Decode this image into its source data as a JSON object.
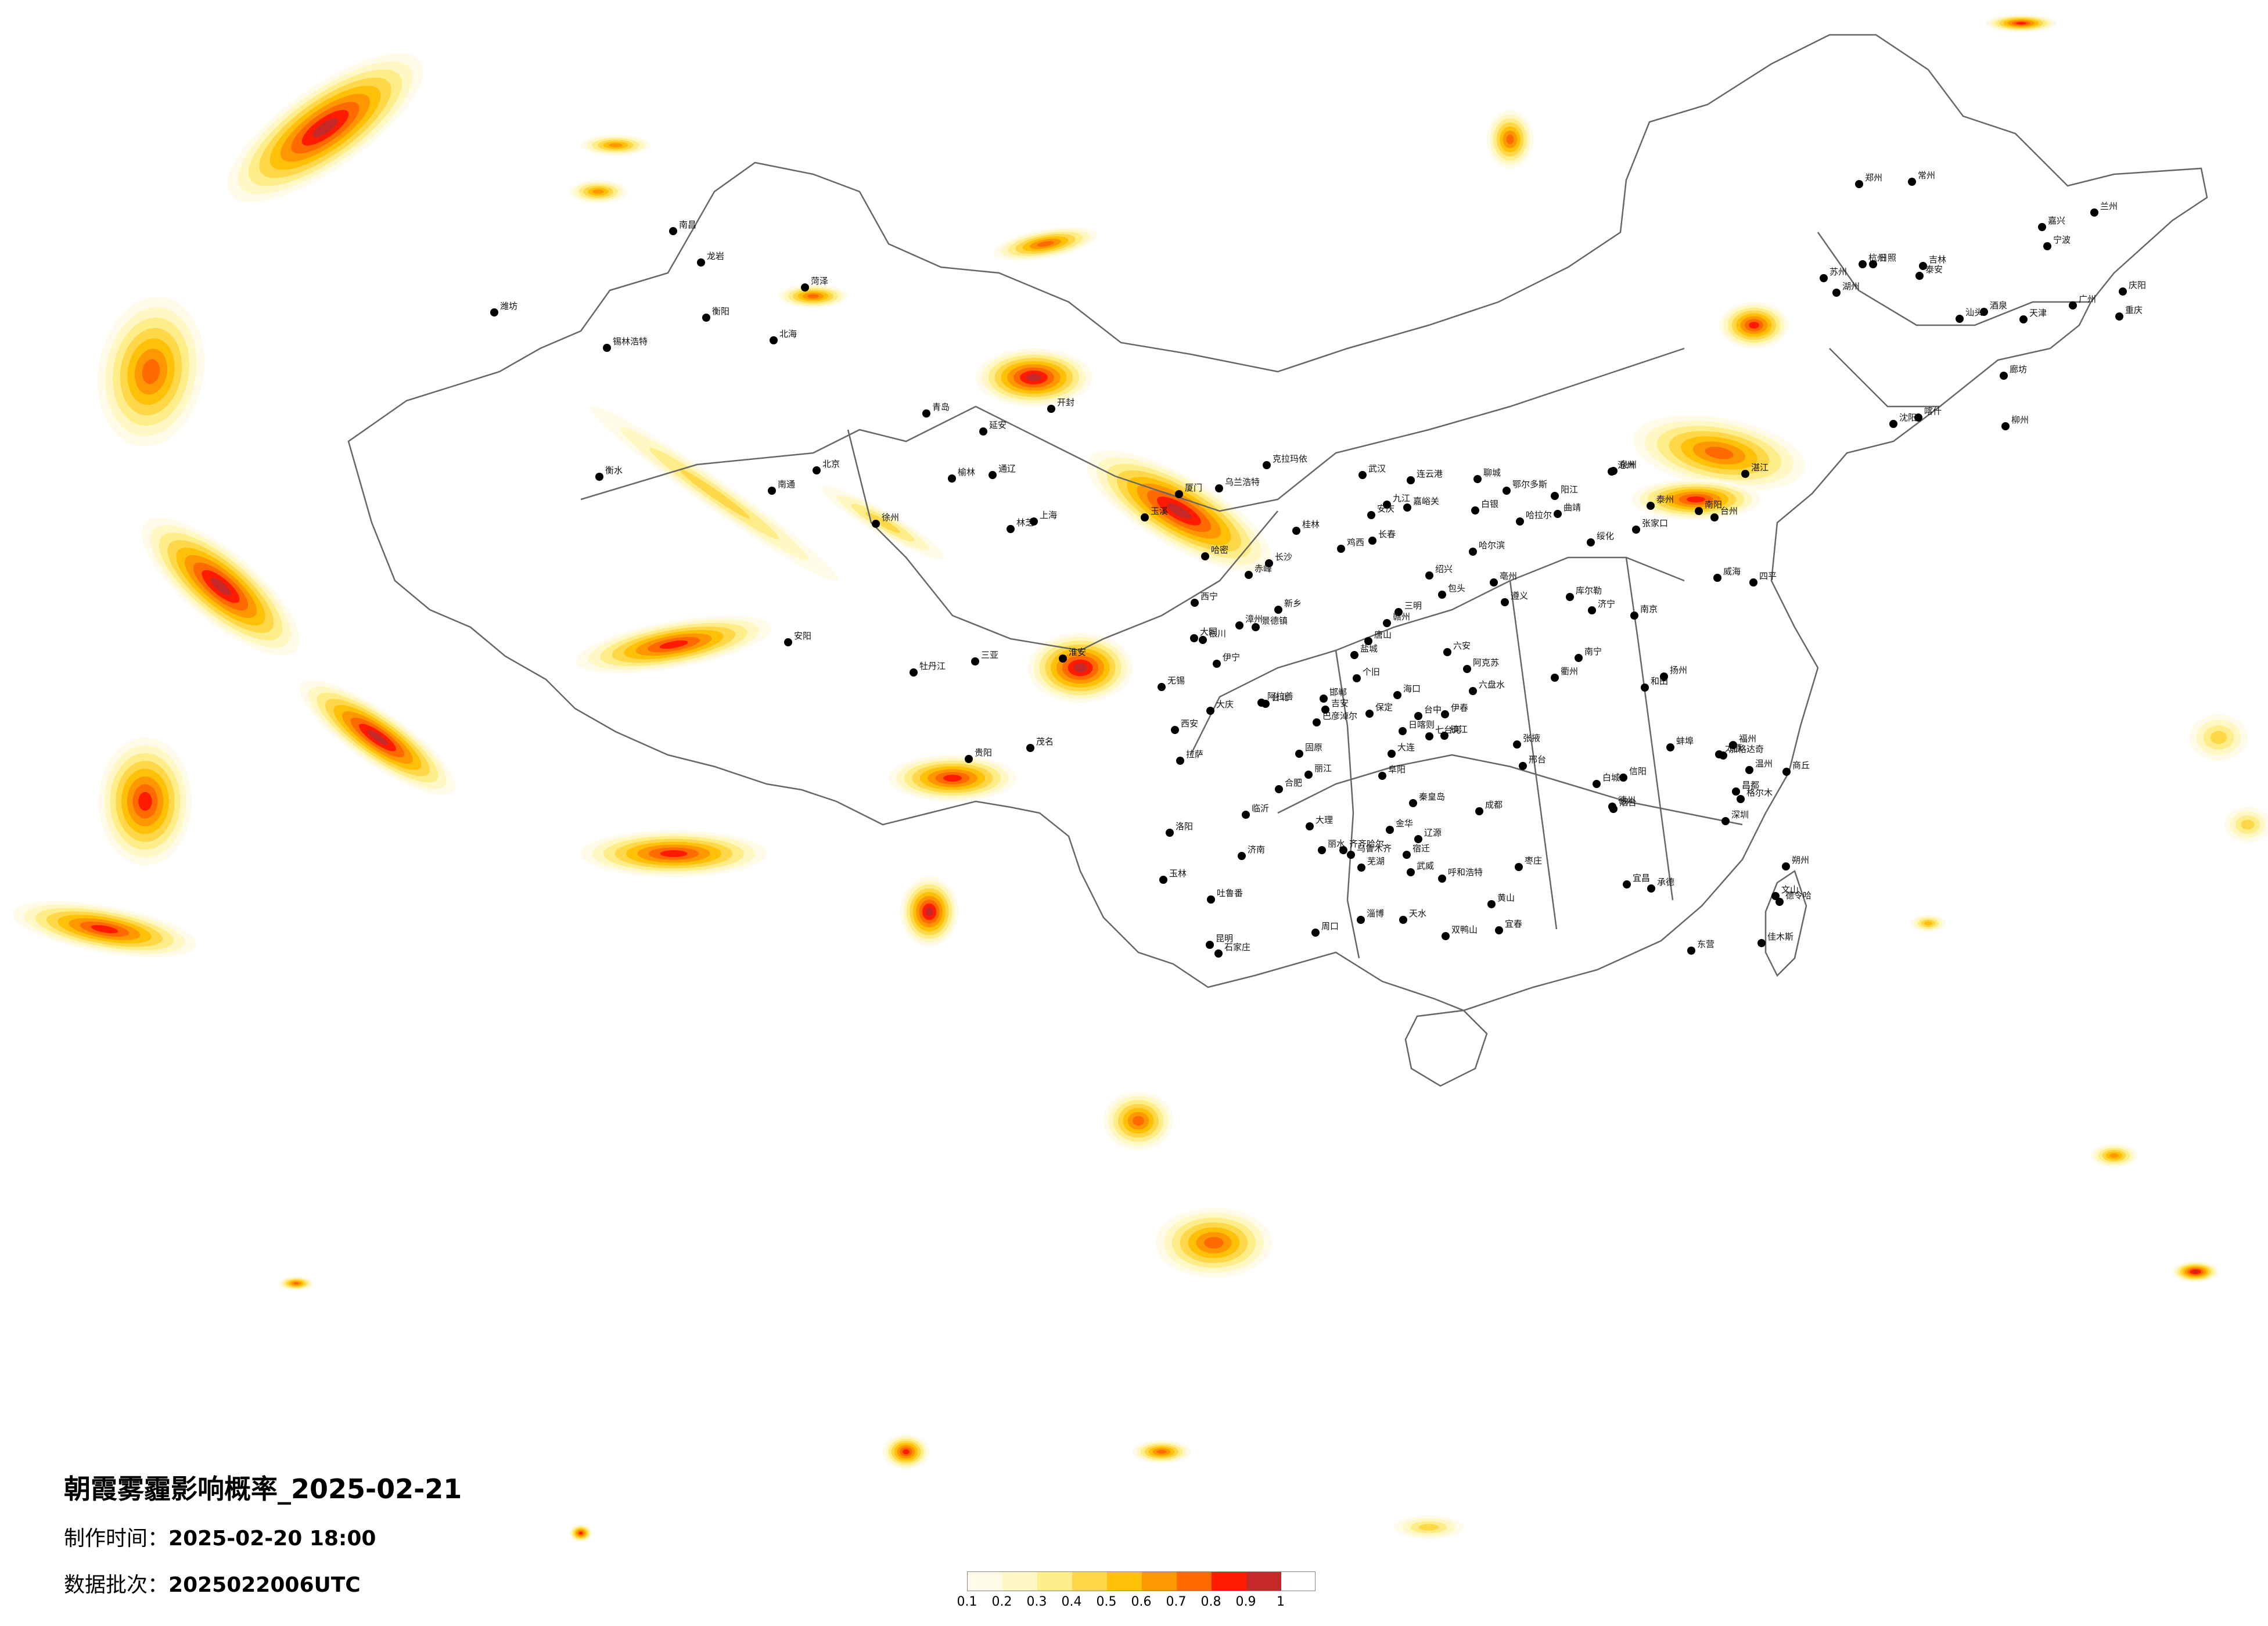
{
  "title": "朝霞雾霾影响概率_2025-02-21",
  "production": {
    "label": "制作时间：",
    "value": "2025-02-20 18:00"
  },
  "batch": {
    "label": "数据批次：",
    "value": "2025022006UTC"
  },
  "legend": {
    "ticks": [
      "0.1",
      "0.2",
      "0.3",
      "0.4",
      "0.5",
      "0.6",
      "0.7",
      "0.8",
      "0.9",
      "1"
    ],
    "colors": [
      "#fffbe8",
      "#fff7c4",
      "#ffed8a",
      "#ffd84a",
      "#ffc107",
      "#ff9800",
      "#ff6a00",
      "#ff1a00",
      "#c62828"
    ]
  },
  "cities": [
    "哈拉尔",
    "伊春",
    "加格达奇",
    "齐齐哈尔",
    "大庆",
    "绥化",
    "哈尔滨",
    "佳木斯",
    "双鸭山",
    "七台河",
    "鸡西",
    "牡丹江",
    "长春",
    "吉林",
    "四平",
    "通辽",
    "辽源",
    "赤峰",
    "乌兰浩特",
    "白城",
    "锡林浩特",
    "呼和浩特",
    "包头",
    "张家口",
    "承德",
    "北京",
    "天津",
    "唐山",
    "秦皇岛",
    "沈阳",
    "大连",
    "石家庄",
    "太原",
    "济南",
    "青岛",
    "烟台",
    "威海",
    "郑州",
    "西安",
    "兰州",
    "西宁",
    "银川",
    "乌鲁木齐",
    "克拉玛依",
    "伊宁",
    "阿克苏",
    "和田",
    "喀什",
    "库尔勒",
    "吐鲁番",
    "哈密",
    "拉萨",
    "日喀则",
    "林芝",
    "昌都",
    "格尔木",
    "德令哈",
    "成都",
    "重庆",
    "贵阳",
    "昆明",
    "南宁",
    "广州",
    "深圳",
    "海口",
    "三亚",
    "长沙",
    "武汉",
    "南昌",
    "合肥",
    "南京",
    "上海",
    "杭州",
    "福州",
    "台北",
    "台中",
    "厦门",
    "汕头",
    "徐州",
    "连云港",
    "宜昌",
    "遵义",
    "大理",
    "丽江",
    "玉溪",
    "北海",
    "桂林",
    "柳州",
    "赣州",
    "温州",
    "宁波",
    "临沂",
    "衡阳",
    "张掖",
    "武威",
    "酒泉",
    "嘉峪关",
    "天水",
    "庆阳",
    "延安",
    "榆林",
    "大同",
    "朔州",
    "鄂尔多斯",
    "阿拉善",
    "巴彦淖尔",
    "固原",
    "白银",
    "六盘水",
    "曲靖",
    "个旧",
    "文山",
    "玉林",
    "茂名",
    "湛江",
    "阳江",
    "三明",
    "龙岩",
    "泉州",
    "漳州",
    "吉安",
    "宜春",
    "九江",
    "景德镇",
    "安庆",
    "芜湖",
    "黄山",
    "金华",
    "丽水",
    "衢州",
    "台州",
    "绍兴",
    "嘉兴",
    "湖州",
    "苏州",
    "无锡",
    "常州",
    "镇江",
    "扬州",
    "泰州",
    "南通",
    "盐城",
    "淮安",
    "宿迁",
    "蚌埠",
    "阜阳",
    "六安",
    "亳州",
    "商丘",
    "周口",
    "信阳",
    "南阳",
    "洛阳",
    "开封",
    "新乡",
    "安阳",
    "邢台",
    "邯郸",
    "聊城",
    "德州",
    "衡水",
    "沧州",
    "保定",
    "廊坊",
    "菏泽",
    "济宁",
    "泰安",
    "淄博",
    "潍坊",
    "东营",
    "日照",
    "枣庄"
  ]
}
